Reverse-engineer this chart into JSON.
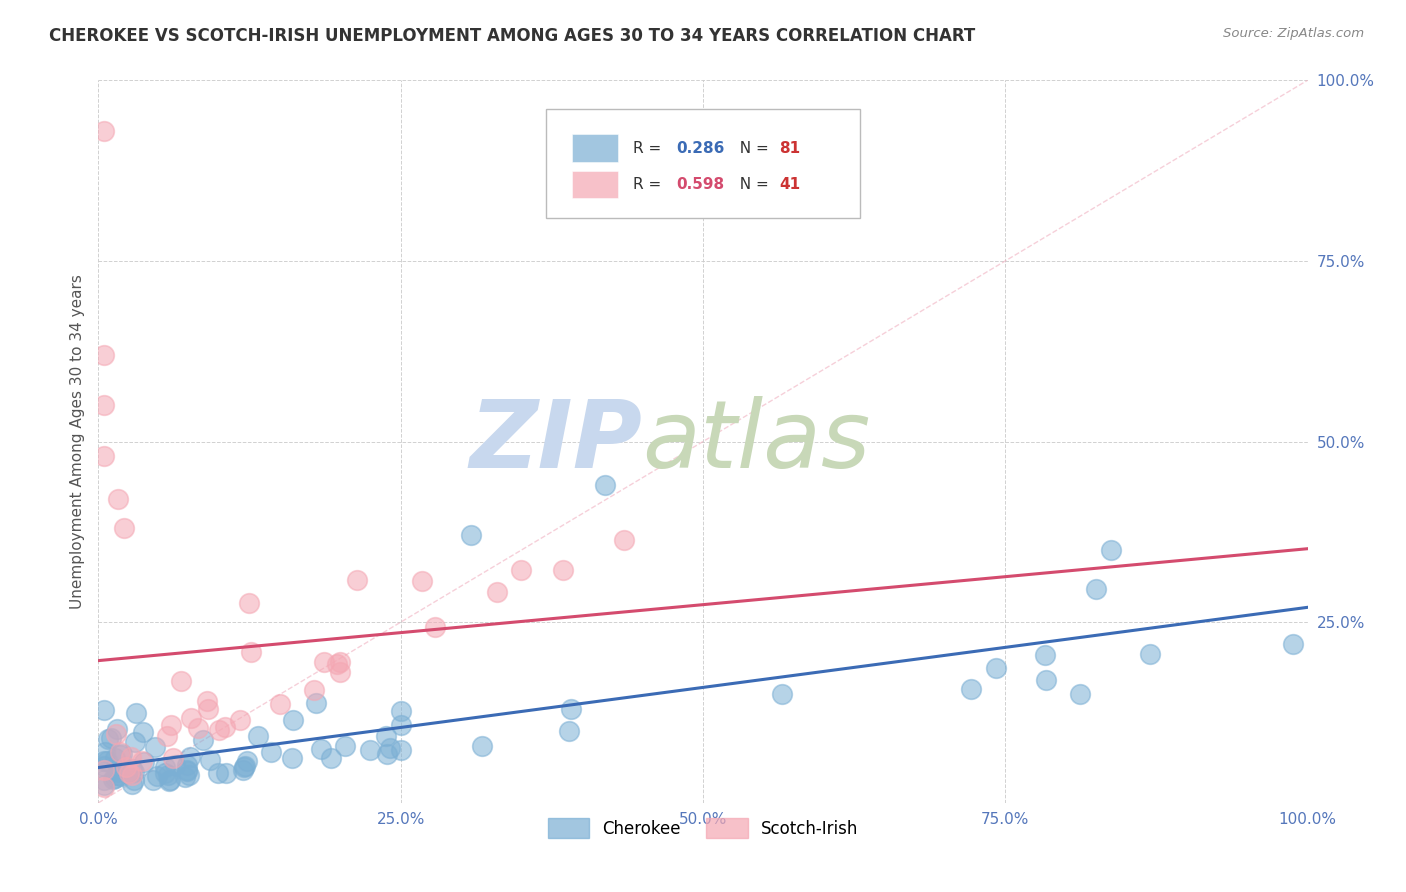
{
  "title": "CHEROKEE VS SCOTCH-IRISH UNEMPLOYMENT AMONG AGES 30 TO 34 YEARS CORRELATION CHART",
  "source": "Source: ZipAtlas.com",
  "ylabel": "Unemployment Among Ages 30 to 34 years",
  "xlim": [
    0,
    1
  ],
  "ylim": [
    0,
    1
  ],
  "xticks": [
    0.0,
    0.25,
    0.5,
    0.75,
    1.0
  ],
  "yticks": [
    0.0,
    0.25,
    0.5,
    0.75,
    1.0
  ],
  "xticklabels": [
    "0.0%",
    "25.0%",
    "50.0%",
    "75.0%",
    "100.0%"
  ],
  "yticklabels": [
    "",
    "25.0%",
    "50.0%",
    "75.0%",
    "100.0%"
  ],
  "cherokee_color": "#7BAFD4",
  "scotch_color": "#F4A7B3",
  "cherokee_line_color": "#3B6BB5",
  "scotch_line_color": "#D44B6E",
  "cherokee_R": 0.286,
  "cherokee_N": 81,
  "scotch_R": 0.598,
  "scotch_N": 41,
  "legend_R_color_cherokee": "#3B6BB5",
  "legend_R_color_scotch": "#D44B6E",
  "legend_N_color": "#CC3333",
  "watermark_zip": "ZIP",
  "watermark_atlas": "atlas",
  "watermark_color": "#C8D8EE",
  "background_color": "#FFFFFF",
  "grid_color": "#CCCCCC",
  "title_color": "#333333",
  "tick_color": "#5577BB"
}
